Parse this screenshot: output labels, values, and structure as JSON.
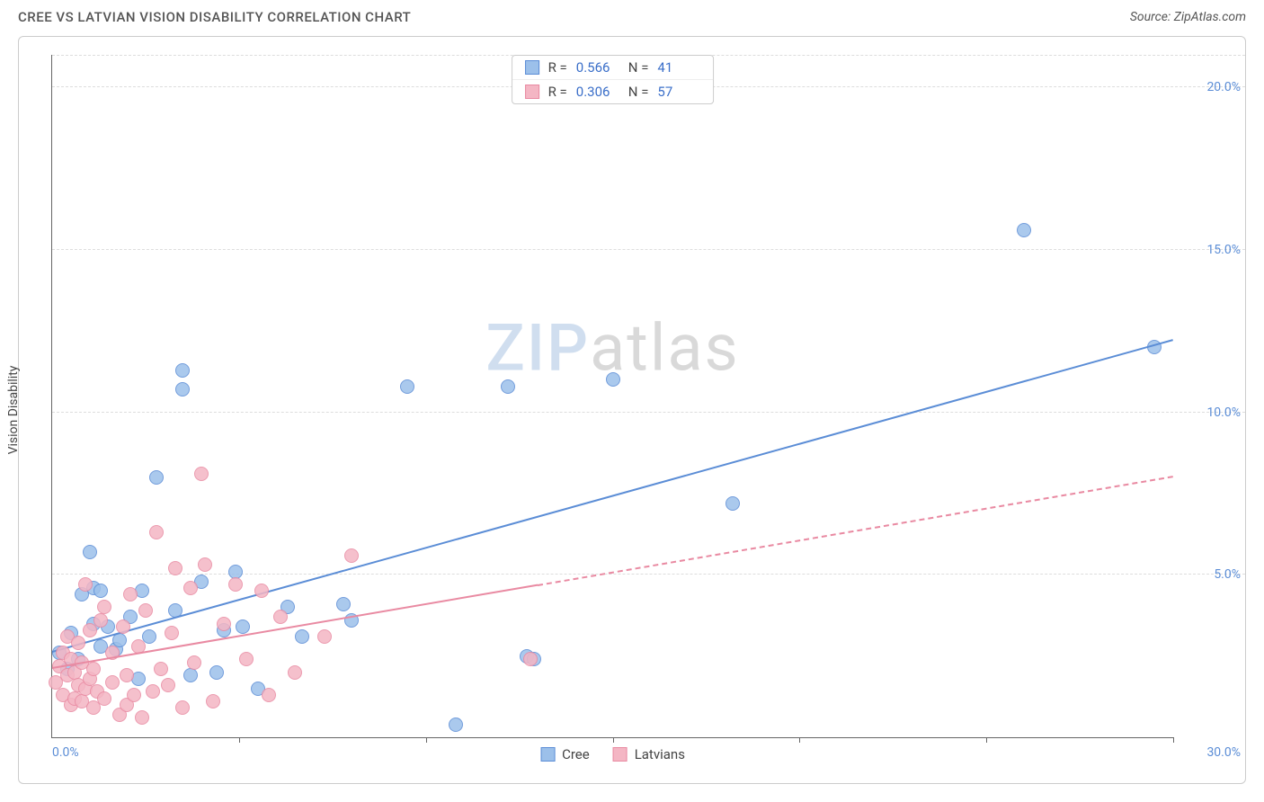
{
  "title": "CREE VS LATVIAN VISION DISABILITY CORRELATION CHART",
  "source": "Source: ZipAtlas.com",
  "ylabel": "Vision Disability",
  "watermark_a": "ZIP",
  "watermark_b": "atlas",
  "chart": {
    "type": "scatter",
    "background_color": "#ffffff",
    "grid_color": "#dddddd",
    "axis_color": "#666666",
    "tick_label_color": "#5b8dd6",
    "xlim": [
      0,
      30
    ],
    "ylim": [
      0,
      21
    ],
    "x_ticks": [
      0,
      5,
      10,
      15,
      20,
      25,
      30
    ],
    "y_ticks": [
      5,
      10,
      15,
      20
    ],
    "y_tick_labels": [
      "5.0%",
      "10.0%",
      "15.0%",
      "20.0%"
    ],
    "x_tick_label_left": "0.0%",
    "x_tick_label_right": "30.0%",
    "marker_radius": 8,
    "marker_border_width": 1,
    "marker_fill_opacity": 0.35,
    "trend_line_width": 2.5,
    "series": [
      {
        "name": "Cree",
        "color_fill": "#9cc0ea",
        "color_border": "#5b8dd6",
        "r_value": "0.566",
        "n_value": "41",
        "trend": {
          "x1": 0,
          "y1": 2.6,
          "x2": 30,
          "y2": 12.2,
          "dashed_from_x": null
        },
        "points": [
          [
            0.2,
            2.6
          ],
          [
            0.4,
            2.1
          ],
          [
            0.5,
            3.2
          ],
          [
            0.7,
            2.4
          ],
          [
            0.8,
            4.4
          ],
          [
            1.0,
            5.7
          ],
          [
            1.1,
            3.5
          ],
          [
            1.1,
            4.6
          ],
          [
            1.3,
            2.8
          ],
          [
            1.3,
            4.5
          ],
          [
            1.5,
            3.4
          ],
          [
            1.7,
            2.7
          ],
          [
            1.8,
            3.0
          ],
          [
            2.1,
            3.7
          ],
          [
            2.3,
            1.8
          ],
          [
            2.4,
            4.5
          ],
          [
            2.6,
            3.1
          ],
          [
            2.8,
            8.0
          ],
          [
            3.3,
            3.9
          ],
          [
            3.5,
            11.3
          ],
          [
            3.5,
            10.7
          ],
          [
            3.7,
            1.9
          ],
          [
            4.0,
            4.8
          ],
          [
            4.4,
            2.0
          ],
          [
            4.6,
            3.3
          ],
          [
            4.9,
            5.1
          ],
          [
            5.1,
            3.4
          ],
          [
            5.5,
            1.5
          ],
          [
            6.3,
            4.0
          ],
          [
            6.7,
            3.1
          ],
          [
            7.8,
            4.1
          ],
          [
            8.0,
            3.6
          ],
          [
            9.5,
            10.8
          ],
          [
            10.8,
            0.4
          ],
          [
            12.2,
            10.8
          ],
          [
            12.7,
            2.5
          ],
          [
            12.9,
            2.4
          ],
          [
            15.0,
            11.0
          ],
          [
            18.2,
            7.2
          ],
          [
            26.0,
            15.6
          ],
          [
            29.5,
            12.0
          ]
        ]
      },
      {
        "name": "Latvians",
        "color_fill": "#f4b6c4",
        "color_border": "#e98aa2",
        "r_value": "0.306",
        "n_value": "57",
        "trend": {
          "x1": 0,
          "y1": 2.1,
          "x2": 30,
          "y2": 8.0,
          "dashed_from_x": 13
        },
        "points": [
          [
            0.1,
            1.7
          ],
          [
            0.2,
            2.2
          ],
          [
            0.3,
            1.3
          ],
          [
            0.3,
            2.6
          ],
          [
            0.4,
            1.9
          ],
          [
            0.4,
            3.1
          ],
          [
            0.5,
            1.0
          ],
          [
            0.5,
            2.4
          ],
          [
            0.6,
            1.2
          ],
          [
            0.6,
            2.0
          ],
          [
            0.7,
            1.6
          ],
          [
            0.7,
            2.9
          ],
          [
            0.8,
            1.1
          ],
          [
            0.8,
            2.3
          ],
          [
            0.9,
            1.5
          ],
          [
            0.9,
            4.7
          ],
          [
            1.0,
            1.8
          ],
          [
            1.0,
            3.3
          ],
          [
            1.1,
            0.9
          ],
          [
            1.1,
            2.1
          ],
          [
            1.2,
            1.4
          ],
          [
            1.3,
            3.6
          ],
          [
            1.4,
            1.2
          ],
          [
            1.4,
            4.0
          ],
          [
            1.6,
            1.7
          ],
          [
            1.6,
            2.6
          ],
          [
            1.8,
            0.7
          ],
          [
            1.9,
            3.4
          ],
          [
            2.0,
            1.0
          ],
          [
            2.0,
            1.9
          ],
          [
            2.1,
            4.4
          ],
          [
            2.2,
            1.3
          ],
          [
            2.3,
            2.8
          ],
          [
            2.4,
            0.6
          ],
          [
            2.5,
            3.9
          ],
          [
            2.7,
            1.4
          ],
          [
            2.8,
            6.3
          ],
          [
            2.9,
            2.1
          ],
          [
            3.1,
            1.6
          ],
          [
            3.2,
            3.2
          ],
          [
            3.3,
            5.2
          ],
          [
            3.5,
            0.9
          ],
          [
            3.7,
            4.6
          ],
          [
            3.8,
            2.3
          ],
          [
            4.0,
            8.1
          ],
          [
            4.1,
            5.3
          ],
          [
            4.3,
            1.1
          ],
          [
            4.6,
            3.5
          ],
          [
            4.9,
            4.7
          ],
          [
            5.2,
            2.4
          ],
          [
            5.6,
            4.5
          ],
          [
            5.8,
            1.3
          ],
          [
            6.1,
            3.7
          ],
          [
            6.5,
            2.0
          ],
          [
            7.3,
            3.1
          ],
          [
            8.0,
            5.6
          ],
          [
            12.8,
            2.4
          ]
        ]
      }
    ],
    "legend_top_labels": {
      "r": "R =",
      "n": "N ="
    },
    "legend_bottom": [
      "Cree",
      "Latvians"
    ]
  }
}
